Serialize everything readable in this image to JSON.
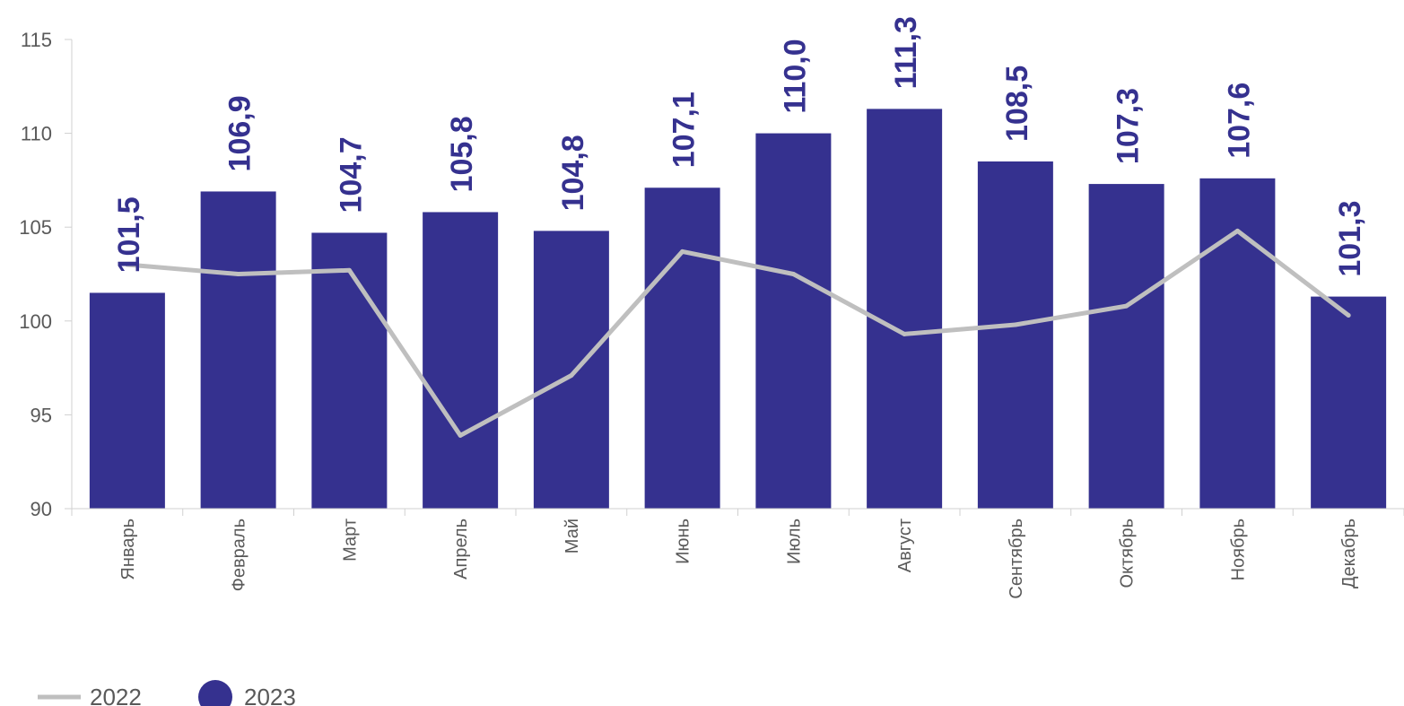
{
  "chart_data": {
    "type": "bar",
    "categories": [
      "Январь",
      "Февраль",
      "Март",
      "Апрель",
      "Май",
      "Июнь",
      "Июль",
      "Август",
      "Сентябрь",
      "Октябрь",
      "Ноябрь",
      "Декабрь"
    ],
    "series": [
      {
        "name": "2023",
        "type": "bar",
        "color": "#35318f",
        "values": [
          101.5,
          106.9,
          104.7,
          105.8,
          104.8,
          107.1,
          110.0,
          111.3,
          108.5,
          107.3,
          107.6,
          101.3
        ],
        "labels": [
          "101,5",
          "106,9",
          "104,7",
          "105,8",
          "104,8",
          "107,1",
          "110,0",
          "111,3",
          "108,5",
          "107,3",
          "107,6",
          "101,3"
        ]
      },
      {
        "name": "2022",
        "type": "line",
        "color": "#bfbfbf",
        "values": [
          103.0,
          102.5,
          102.7,
          93.9,
          97.1,
          103.7,
          102.5,
          99.3,
          99.8,
          100.8,
          104.8,
          100.3
        ]
      }
    ],
    "ylim": [
      90,
      115
    ],
    "yticks": [
      90,
      95,
      100,
      105,
      110,
      115
    ],
    "xlabel": "",
    "ylabel": "",
    "title": "",
    "legend": {
      "position": "bottom-left",
      "entries": [
        {
          "label": "2022",
          "marker": "line",
          "color": "#bfbfbf"
        },
        {
          "label": "2023",
          "marker": "circle",
          "color": "#35318f"
        }
      ]
    },
    "grid": false
  }
}
